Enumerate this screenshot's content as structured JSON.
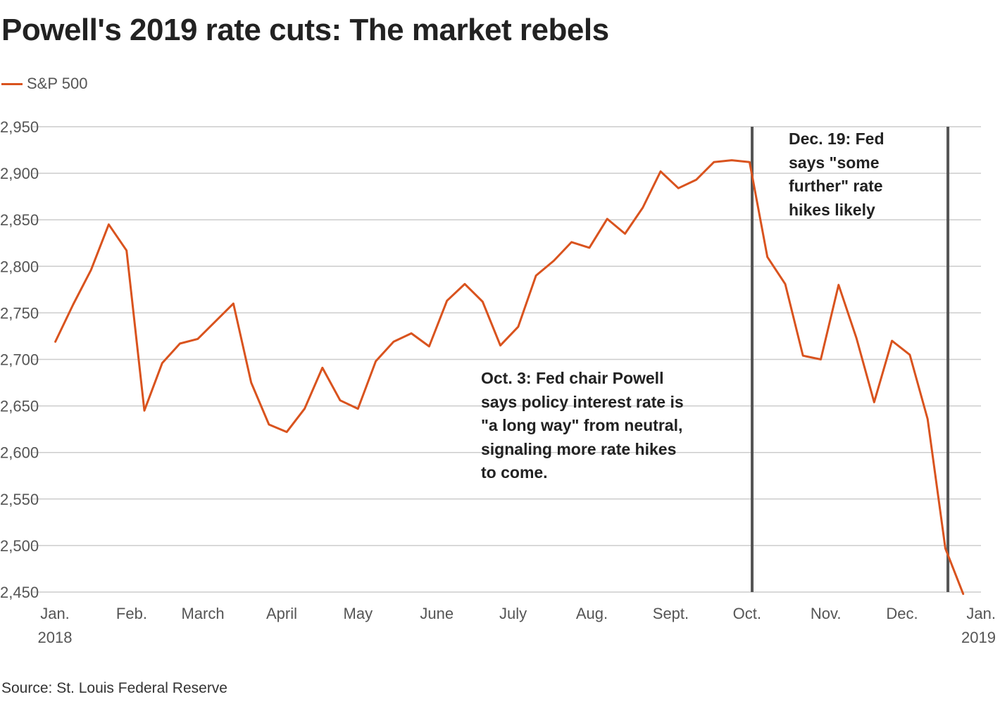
{
  "title": "Powell's 2019 rate cuts: The market rebels",
  "source": "Source: St. Louis Federal Reserve",
  "colors": {
    "series": "#d9531e",
    "grid": "#cccccc",
    "marker": "#555555",
    "text": "#222222",
    "tick": "#555555"
  },
  "chart_data": {
    "type": "line",
    "legend_position": "top-left",
    "grid": true,
    "ylim": [
      2450,
      2950
    ],
    "yticks": [
      2950,
      2900,
      2850,
      2800,
      2750,
      2700,
      2650,
      2600,
      2550,
      2500,
      2450
    ],
    "ytick_labels": [
      "2,950",
      "2,900",
      "2,850",
      "2,800",
      "2,750",
      "2,700",
      "2,650",
      "2,600",
      "2,550",
      "2,500",
      "2,450"
    ],
    "xlim": [
      "2018-01-01",
      "2019-01-01"
    ],
    "xticks": [
      {
        "date": "2018-01-01",
        "label": "Jan.",
        "sublabel": "2018"
      },
      {
        "date": "2018-02-01",
        "label": "Feb."
      },
      {
        "date": "2018-03-01",
        "label": "March"
      },
      {
        "date": "2018-04-01",
        "label": "April"
      },
      {
        "date": "2018-05-01",
        "label": "May"
      },
      {
        "date": "2018-06-01",
        "label": "June"
      },
      {
        "date": "2018-07-01",
        "label": "July"
      },
      {
        "date": "2018-08-01",
        "label": "Aug."
      },
      {
        "date": "2018-09-01",
        "label": "Sept."
      },
      {
        "date": "2018-10-01",
        "label": "Oct."
      },
      {
        "date": "2018-11-01",
        "label": "Nov."
      },
      {
        "date": "2018-12-01",
        "label": "Dec."
      },
      {
        "date": "2019-01-01",
        "label": "Jan.",
        "sublabel": "2019"
      }
    ],
    "series": [
      {
        "name": "S&P 500",
        "points": [
          {
            "x": "2018-01-02",
            "y": 2719
          },
          {
            "x": "2018-01-09",
            "y": 2759
          },
          {
            "x": "2018-01-16",
            "y": 2796
          },
          {
            "x": "2018-01-23",
            "y": 2845
          },
          {
            "x": "2018-01-30",
            "y": 2817
          },
          {
            "x": "2018-02-06",
            "y": 2645
          },
          {
            "x": "2018-02-13",
            "y": 2696
          },
          {
            "x": "2018-02-20",
            "y": 2717
          },
          {
            "x": "2018-02-27",
            "y": 2722
          },
          {
            "x": "2018-03-06",
            "y": 2741
          },
          {
            "x": "2018-03-13",
            "y": 2760
          },
          {
            "x": "2018-03-20",
            "y": 2675
          },
          {
            "x": "2018-03-27",
            "y": 2630
          },
          {
            "x": "2018-04-03",
            "y": 2622
          },
          {
            "x": "2018-04-10",
            "y": 2647
          },
          {
            "x": "2018-04-17",
            "y": 2691
          },
          {
            "x": "2018-04-24",
            "y": 2656
          },
          {
            "x": "2018-05-01",
            "y": 2647
          },
          {
            "x": "2018-05-08",
            "y": 2698
          },
          {
            "x": "2018-05-15",
            "y": 2719
          },
          {
            "x": "2018-05-22",
            "y": 2728
          },
          {
            "x": "2018-05-29",
            "y": 2714
          },
          {
            "x": "2018-06-05",
            "y": 2763
          },
          {
            "x": "2018-06-12",
            "y": 2781
          },
          {
            "x": "2018-06-19",
            "y": 2762
          },
          {
            "x": "2018-06-26",
            "y": 2715
          },
          {
            "x": "2018-07-03",
            "y": 2735
          },
          {
            "x": "2018-07-10",
            "y": 2790
          },
          {
            "x": "2018-07-17",
            "y": 2806
          },
          {
            "x": "2018-07-24",
            "y": 2826
          },
          {
            "x": "2018-07-31",
            "y": 2820
          },
          {
            "x": "2018-08-07",
            "y": 2851
          },
          {
            "x": "2018-08-14",
            "y": 2835
          },
          {
            "x": "2018-08-21",
            "y": 2863
          },
          {
            "x": "2018-08-28",
            "y": 2902
          },
          {
            "x": "2018-09-04",
            "y": 2884
          },
          {
            "x": "2018-09-11",
            "y": 2893
          },
          {
            "x": "2018-09-18",
            "y": 2912
          },
          {
            "x": "2018-09-25",
            "y": 2914
          },
          {
            "x": "2018-10-02",
            "y": 2912
          },
          {
            "x": "2018-10-09",
            "y": 2810
          },
          {
            "x": "2018-10-16",
            "y": 2781
          },
          {
            "x": "2018-10-23",
            "y": 2704
          },
          {
            "x": "2018-10-30",
            "y": 2700
          },
          {
            "x": "2018-11-06",
            "y": 2780
          },
          {
            "x": "2018-11-13",
            "y": 2723
          },
          {
            "x": "2018-11-20",
            "y": 2654
          },
          {
            "x": "2018-11-27",
            "y": 2720
          },
          {
            "x": "2018-12-04",
            "y": 2705
          },
          {
            "x": "2018-12-11",
            "y": 2636
          },
          {
            "x": "2018-12-18",
            "y": 2497
          },
          {
            "x": "2018-12-25",
            "y": 2448
          }
        ]
      }
    ],
    "markers": [
      {
        "date": "2018-10-03",
        "lines": [
          "Oct. 3: Fed chair Powell",
          "says policy interest rate is",
          "\"a long way\" from neutral,",
          "signaling more rate hikes",
          "to come."
        ]
      },
      {
        "date": "2018-12-19",
        "lines": [
          "Dec. 19: Fed",
          "says \"some",
          "further\" rate",
          "hikes likely"
        ]
      }
    ]
  }
}
